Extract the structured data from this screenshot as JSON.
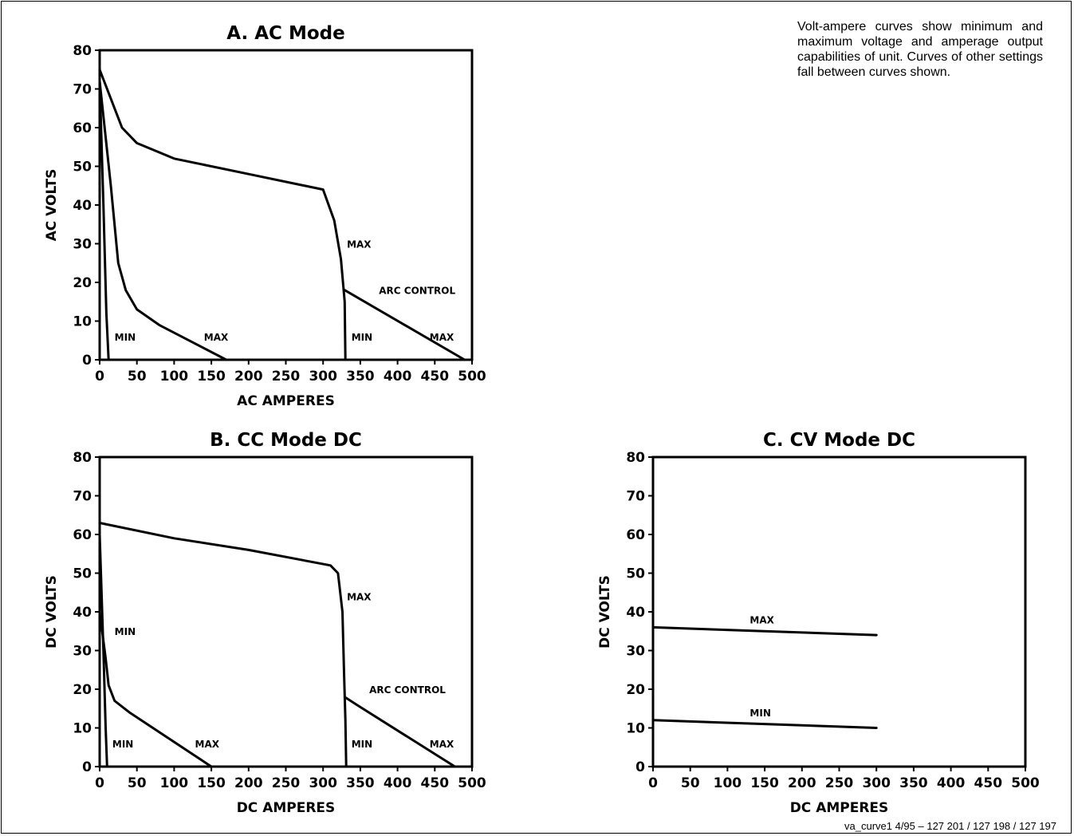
{
  "note": "Volt-ampere curves show  minimum and maximum voltage and amperage output capabilities of unit. Curves of other settings fall between curves shown.",
  "footer": "va_curve1 4/95 – 127 201 / 127 198 / 127 197",
  "chart_data": [
    {
      "type": "line",
      "title": "A.  AC Mode",
      "xlabel": "AC  AMPERES",
      "ylabel": "AC  VOLTS",
      "xlim": [
        0,
        500
      ],
      "ylim": [
        0,
        80
      ],
      "xticks": [
        0,
        50,
        100,
        150,
        200,
        250,
        300,
        350,
        400,
        450,
        500
      ],
      "yticks": [
        0,
        10,
        20,
        30,
        40,
        50,
        60,
        70,
        80
      ],
      "grid": false,
      "series": [
        {
          "name": "MIN",
          "points": [
            [
              0,
              72
            ],
            [
              5,
              40
            ],
            [
              9,
              12
            ],
            [
              12,
              0
            ]
          ]
        },
        {
          "name": "MAX",
          "points": [
            [
              0,
              72
            ],
            [
              15,
              45
            ],
            [
              25,
              25
            ],
            [
              35,
              18
            ],
            [
              50,
              13
            ],
            [
              80,
              9
            ],
            [
              170,
              0
            ]
          ]
        },
        {
          "name": "MAX",
          "points": [
            [
              0,
              75
            ],
            [
              30,
              60
            ],
            [
              50,
              56
            ],
            [
              100,
              52
            ],
            [
              200,
              48
            ],
            [
              300,
              44
            ],
            [
              315,
              36
            ],
            [
              324,
              26
            ],
            [
              329,
              15
            ],
            [
              330,
              0
            ]
          ]
        },
        {
          "name": "ARC  CONTROL",
          "points": [
            [
              329,
              18
            ],
            [
              490,
              0
            ]
          ]
        }
      ],
      "annotations": [
        {
          "text": "MIN",
          "x": 20,
          "y": 5
        },
        {
          "text": "MAX",
          "x": 140,
          "y": 5
        },
        {
          "text": "MAX",
          "x": 332,
          "y": 29
        },
        {
          "text": "ARC  CONTROL",
          "x": 375,
          "y": 17
        },
        {
          "text": "MIN",
          "x": 338,
          "y": 5
        },
        {
          "text": "MAX",
          "x": 443,
          "y": 5
        }
      ]
    },
    {
      "type": "line",
      "title": "B.  CC Mode DC",
      "xlabel": "DC  AMPERES",
      "ylabel": "DC  VOLTS",
      "xlim": [
        0,
        500
      ],
      "ylim": [
        0,
        80
      ],
      "xticks": [
        0,
        50,
        100,
        150,
        200,
        250,
        300,
        350,
        400,
        450,
        500
      ],
      "yticks": [
        0,
        10,
        20,
        30,
        40,
        50,
        60,
        70,
        80
      ],
      "grid": false,
      "series": [
        {
          "name": "MIN",
          "points": [
            [
              0,
              60
            ],
            [
              5,
              30
            ],
            [
              8,
              10
            ],
            [
              10,
              0
            ]
          ]
        },
        {
          "name": "MAX",
          "points": [
            [
              0,
              40
            ],
            [
              8,
              28
            ],
            [
              12,
              21
            ],
            [
              20,
              17
            ],
            [
              40,
              14
            ],
            [
              150,
              0
            ]
          ]
        },
        {
          "name": "MAX",
          "points": [
            [
              0,
              63
            ],
            [
              100,
              59
            ],
            [
              200,
              56
            ],
            [
              310,
              52
            ],
            [
              320,
              50
            ],
            [
              326,
              40
            ],
            [
              328,
              25
            ],
            [
              330,
              12
            ],
            [
              331,
              0
            ]
          ]
        },
        {
          "name": "ARC  CONTROL",
          "points": [
            [
              329,
              18
            ],
            [
              345,
              16
            ],
            [
              477,
              0
            ]
          ]
        }
      ],
      "annotations": [
        {
          "text": "MIN",
          "x": 20,
          "y": 34
        },
        {
          "text": "MIN",
          "x": 17,
          "y": 5
        },
        {
          "text": "MAX",
          "x": 128,
          "y": 5
        },
        {
          "text": "MAX",
          "x": 332,
          "y": 43
        },
        {
          "text": "ARC  CONTROL",
          "x": 362,
          "y": 19
        },
        {
          "text": "MIN",
          "x": 338,
          "y": 5
        },
        {
          "text": "MAX",
          "x": 443,
          "y": 5
        }
      ]
    },
    {
      "type": "line",
      "title": "C.  CV Mode DC",
      "xlabel": "DC  AMPERES",
      "ylabel": "DC  VOLTS",
      "xlim": [
        0,
        500
      ],
      "ylim": [
        0,
        80
      ],
      "xticks": [
        0,
        50,
        100,
        150,
        200,
        250,
        300,
        350,
        400,
        450,
        500
      ],
      "yticks": [
        0,
        10,
        20,
        30,
        40,
        50,
        60,
        70,
        80
      ],
      "grid": false,
      "series": [
        {
          "name": "MAX",
          "points": [
            [
              0,
              36
            ],
            [
              300,
              34
            ]
          ]
        },
        {
          "name": "MIN",
          "points": [
            [
              0,
              12
            ],
            [
              300,
              10
            ]
          ]
        }
      ],
      "annotations": [
        {
          "text": "MAX",
          "x": 130,
          "y": 37
        },
        {
          "text": "MIN",
          "x": 130,
          "y": 13
        }
      ]
    }
  ]
}
